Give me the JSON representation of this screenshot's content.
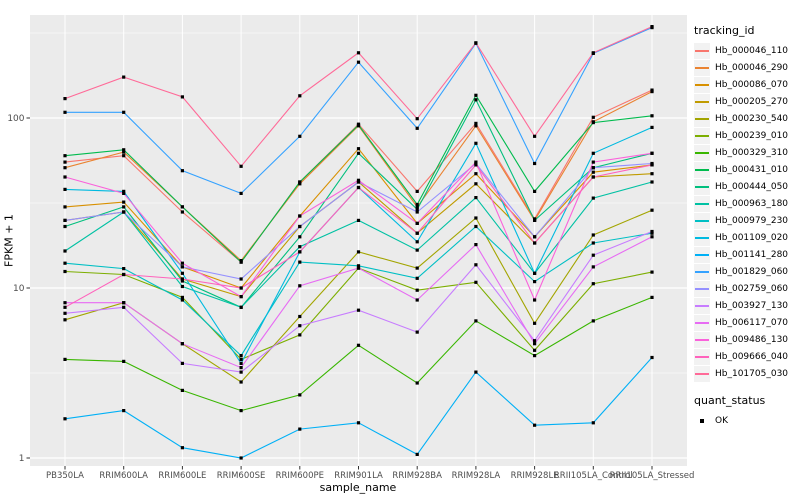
{
  "colors": {
    "page_bg": "#FFFFFF",
    "panel_bg": "#EBEBEB",
    "grid": "#FFFFFF",
    "tick_text": "#4D4D4D",
    "axis_text": "#000000",
    "point": "#000000",
    "legend_key_bg": "#F2F2F2"
  },
  "chart_data": {
    "type": "line",
    "title": "",
    "xlabel": "sample_name",
    "ylabel": "FPKM + 1",
    "y_scale": "log10",
    "grid": true,
    "legend_position": "right",
    "legend_title": "tracking_id",
    "quant_legend_title": "quant_status",
    "quant_legend_items": [
      {
        "label": "OK",
        "marker": "black-square"
      }
    ],
    "y_ticks": [
      {
        "label": "1",
        "value": 1
      },
      {
        "label": "10",
        "value": 10
      },
      {
        "label": "100",
        "value": 100
      }
    ],
    "y_minor_ticks": [
      3.162,
      31.62,
      316.2
    ],
    "ylim": [
      0.9,
      400
    ],
    "categories": [
      "PB350LA",
      "RRIM600LA",
      "RRIM600LE",
      "RRIM600SE",
      "RRIM600PE",
      "RRIM901LA",
      "RRIM928BA",
      "RRIM928LA",
      "RRIM928LE",
      "RRII105LA_Control",
      "RRII105LA_Stressed"
    ],
    "series": [
      {
        "name": "Hb_000046_110",
        "color": "#F8766D",
        "values": [
          55,
          60,
          28,
          14.2,
          42,
          92,
          37,
          93,
          25.5,
          101,
          146
        ]
      },
      {
        "name": "Hb_000046_290",
        "color": "#EA8331",
        "values": [
          51,
          63,
          30,
          14.5,
          41,
          90,
          30,
          90,
          25,
          95,
          143
        ]
      },
      {
        "name": "Hb_000086_070",
        "color": "#D89000",
        "values": [
          30,
          32,
          13.3,
          10,
          26.5,
          66,
          24,
          47,
          20,
          48,
          53
        ]
      },
      {
        "name": "Hb_000205_270",
        "color": "#C09B00",
        "values": [
          25,
          28,
          11.3,
          8.9,
          23,
          42,
          21,
          41,
          18.4,
          45,
          47
        ]
      },
      {
        "name": "Hb_000230_540",
        "color": "#A3A500",
        "values": [
          6.5,
          8.2,
          4.7,
          2.8,
          6.8,
          16.3,
          13.1,
          25.8,
          6.2,
          20.5,
          28.7
        ]
      },
      {
        "name": "Hb_000239_010",
        "color": "#7CAE00",
        "values": [
          12.5,
          12,
          8.8,
          3.8,
          5.3,
          13.1,
          9.7,
          10.8,
          4.3,
          10.6,
          12.4
        ]
      },
      {
        "name": "Hb_000329_310",
        "color": "#39B600",
        "values": [
          3.8,
          3.7,
          2.5,
          1.9,
          2.35,
          4.6,
          2.76,
          6.4,
          4.0,
          6.4,
          8.8
        ]
      },
      {
        "name": "Hb_000431_010",
        "color": "#00BB4E",
        "values": [
          60,
          65,
          30,
          14.2,
          42,
          91,
          31,
          136,
          37,
          94,
          103
        ]
      },
      {
        "name": "Hb_000444_050",
        "color": "#00BF7D",
        "values": [
          23,
          30,
          11,
          7.7,
          20,
          62,
          29,
          128,
          25,
          51,
          62
        ]
      },
      {
        "name": "Hb_000963_180",
        "color": "#00C1A3",
        "values": [
          16.5,
          28,
          10.2,
          7.7,
          17.5,
          25,
          16.7,
          34,
          12.2,
          33.8,
          42
        ]
      },
      {
        "name": "Hb_000979_230",
        "color": "#00BFC4",
        "values": [
          14,
          13,
          8.5,
          4.0,
          14.2,
          13.5,
          11.4,
          23,
          10.9,
          18.4,
          21
        ]
      },
      {
        "name": "Hb_001109_020",
        "color": "#00BAE0",
        "values": [
          38,
          37,
          12.2,
          3.6,
          16.3,
          39,
          18.7,
          71,
          12.2,
          62,
          88
        ]
      },
      {
        "name": "Hb_001141_280",
        "color": "#00B0F6",
        "values": [
          1.7,
          1.9,
          1.15,
          1.0,
          1.48,
          1.61,
          1.05,
          3.2,
          1.56,
          1.61,
          3.9
        ]
      },
      {
        "name": "Hb_001829_060",
        "color": "#35A2FF",
        "values": [
          108,
          108,
          49,
          36,
          78,
          213,
          87,
          275,
          54,
          240,
          340
        ]
      },
      {
        "name": "Hb_002759_060",
        "color": "#9590FF",
        "values": [
          25,
          28,
          13.3,
          11.3,
          23,
          42,
          28,
          54,
          20,
          51,
          54
        ]
      },
      {
        "name": "Hb_003927_130",
        "color": "#C77CFF",
        "values": [
          7.1,
          7.7,
          3.6,
          3.2,
          6.0,
          7.4,
          5.5,
          13.7,
          4.9,
          15.6,
          21.5
        ]
      },
      {
        "name": "Hb_006117_070",
        "color": "#E76BF3",
        "values": [
          8.2,
          8.2,
          4.7,
          3.4,
          10.3,
          13.1,
          8.5,
          18,
          4.7,
          13.3,
          20
        ]
      },
      {
        "name": "Hb_009486_130",
        "color": "#FA62DB",
        "values": [
          45,
          36,
          14,
          8.9,
          26.5,
          43,
          24,
          55,
          8.5,
          55,
          62
        ]
      },
      {
        "name": "Hb_009666_040",
        "color": "#FF62BC",
        "values": [
          7.7,
          12,
          11.3,
          10,
          16.3,
          39,
          21,
          53,
          18.4,
          45,
          53
        ]
      },
      {
        "name": "Hb_101705_030",
        "color": "#FF6A98",
        "values": [
          130,
          174,
          133,
          52,
          135,
          242,
          99,
          277,
          78,
          242,
          345
        ]
      }
    ]
  }
}
